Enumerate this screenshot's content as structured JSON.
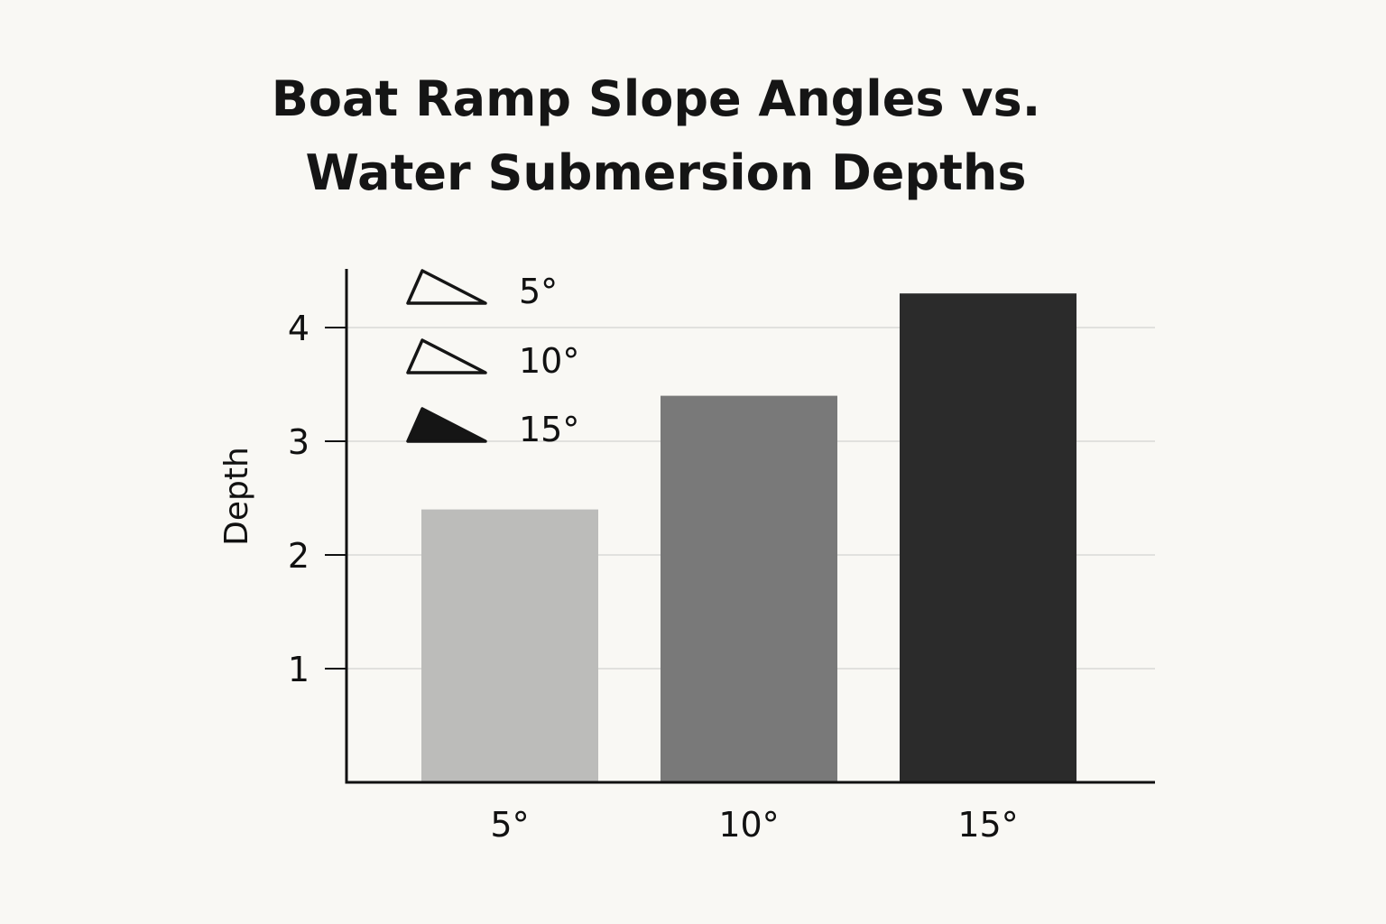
{
  "chart_data": {
    "type": "bar",
    "title": [
      "Boat Ramp Slope Angles vs.",
      "Water Submersion Depths"
    ],
    "xlabel": "",
    "ylabel": "Depth",
    "categories": [
      "5°",
      "10°",
      "15°"
    ],
    "values": [
      2.4,
      3.4,
      4.3
    ],
    "bar_colors": [
      "#bcbcba",
      "#797979",
      "#2b2b2b"
    ],
    "yticks": [
      1,
      2,
      3,
      4
    ],
    "ylim": [
      0,
      4.6
    ],
    "grid": "horizontal",
    "legend": {
      "placement": "top-left",
      "entries": [
        {
          "label": "5°",
          "marker": "outline-triangle"
        },
        {
          "label": "10°",
          "marker": "outline-triangle"
        },
        {
          "label": "15°",
          "marker": "filled-triangle"
        }
      ]
    }
  },
  "colors": {
    "background": "#f9f8f4",
    "axis": "#111111",
    "grid": "#d9d9d6",
    "text": "#111111"
  }
}
